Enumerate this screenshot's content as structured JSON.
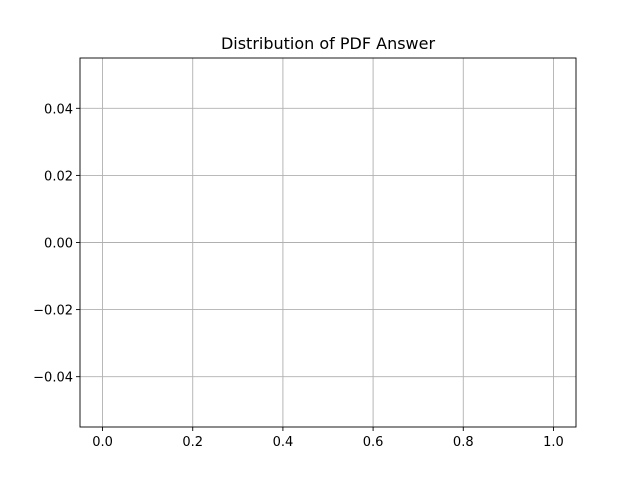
{
  "chart_data": {
    "type": "line",
    "title": "Distribution of PDF Answer",
    "xlabel": "",
    "ylabel": "",
    "series": [],
    "xlim": [
      -0.05,
      1.05
    ],
    "ylim": [
      -0.055,
      0.055
    ],
    "xticks": [
      0.0,
      0.2,
      0.4,
      0.6,
      0.8,
      1.0
    ],
    "xtick_labels": [
      "0.0",
      "0.2",
      "0.4",
      "0.6",
      "0.8",
      "1.0"
    ],
    "yticks": [
      0.04,
      0.02,
      0.0,
      -0.02,
      -0.04
    ],
    "ytick_labels": [
      "0.04",
      "0.02",
      "0.00",
      "−0.02",
      "−0.04"
    ],
    "grid": true,
    "legend": "none"
  }
}
